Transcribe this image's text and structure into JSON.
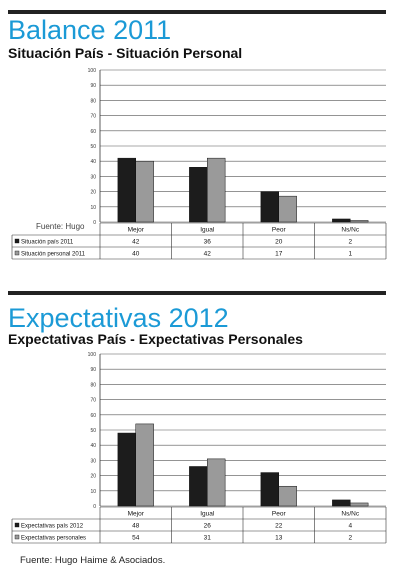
{
  "page": {
    "section1": {
      "title": "Balance 2011",
      "subtitle": "Situación País - Situación Personal",
      "source_inline": "Fuente: Hugo"
    },
    "section2": {
      "title": "Expectativas 2012",
      "subtitle": "Expectativas País - Expectativas Personales"
    },
    "source_bottom": "Fuente: Hugo Haime & Asociados."
  },
  "colors": {
    "title": "#1b9ad6",
    "series_dark": "#1c1c1c",
    "series_light": "#9a9a9a"
  },
  "chart_data": [
    {
      "type": "bar",
      "title": "",
      "categories": [
        "Mejor",
        "Igual",
        "Peor",
        "Ns/Nc"
      ],
      "series": [
        {
          "name": "Situación país 2011",
          "values": [
            42,
            36,
            20,
            2
          ],
          "color": "#1c1c1c"
        },
        {
          "name": "Situación personal 2011",
          "values": [
            40,
            42,
            17,
            1
          ],
          "color": "#9a9a9a"
        }
      ],
      "ylim": [
        0,
        100
      ],
      "yticks": [
        0,
        10,
        20,
        30,
        40,
        50,
        60,
        70,
        80,
        90,
        100
      ],
      "data_table": true,
      "grid": true
    },
    {
      "type": "bar",
      "title": "",
      "categories": [
        "Mejor",
        "Igual",
        "Peor",
        "Ns/Nc"
      ],
      "series": [
        {
          "name": "Expectativas país 2012",
          "values": [
            48,
            26,
            22,
            4
          ],
          "color": "#1c1c1c"
        },
        {
          "name": "Expectativas personales",
          "values": [
            54,
            31,
            13,
            2
          ],
          "color": "#9a9a9a"
        }
      ],
      "ylim": [
        0,
        100
      ],
      "yticks": [
        0,
        10,
        20,
        30,
        40,
        50,
        60,
        70,
        80,
        90,
        100
      ],
      "data_table": true,
      "grid": true
    }
  ]
}
